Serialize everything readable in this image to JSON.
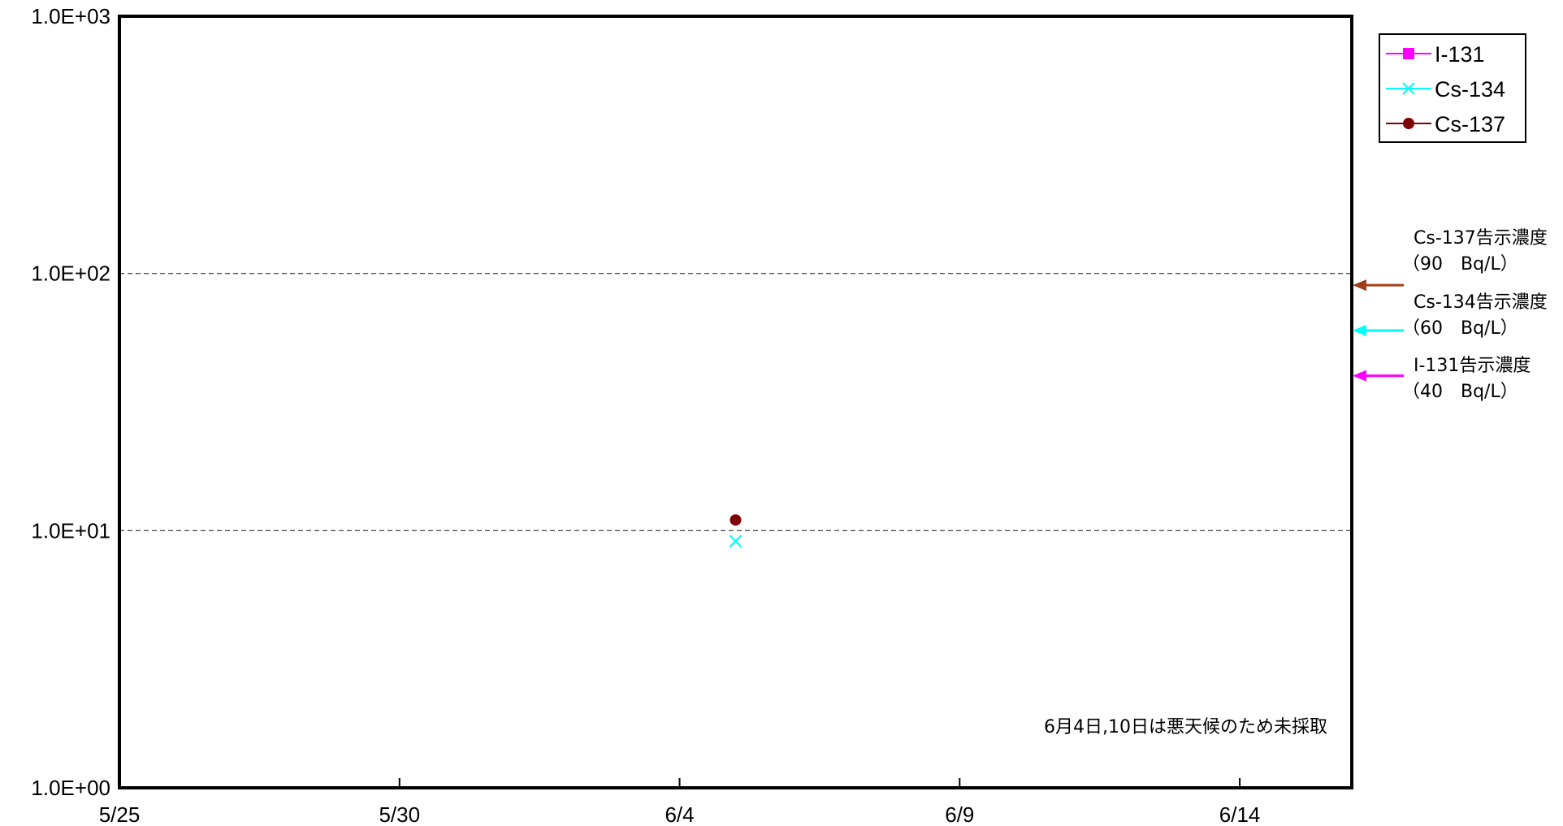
{
  "chart_data": {
    "type": "scatter",
    "x_axis": {
      "type": "date",
      "range": [
        "5/25",
        "6/16"
      ],
      "tick_labels": [
        "5/25",
        "5/30",
        "6/4",
        "6/9",
        "6/14"
      ]
    },
    "y_axis": {
      "scale": "log",
      "range": [
        1,
        1000
      ],
      "tick_labels": [
        "1.0E+00",
        "1.0E+01",
        "1.0E+02",
        "1.0E+03"
      ]
    },
    "grid": {
      "horizontal": "dashed"
    },
    "legend": {
      "position": "top-right",
      "entries": [
        {
          "label": "I-131",
          "color": "#ff00ff",
          "marker": "square"
        },
        {
          "label": "Cs-134",
          "color": "#00ffff",
          "marker": "x"
        },
        {
          "label": "Cs-137",
          "color": "#800000",
          "marker": "circle"
        }
      ]
    },
    "series": [
      {
        "name": "I-131",
        "color": "#ff00ff",
        "marker": "square",
        "points": []
      },
      {
        "name": "Cs-134",
        "color": "#00ffff",
        "marker": "x",
        "points": [
          {
            "x": "6/5",
            "y": 9.1
          }
        ]
      },
      {
        "name": "Cs-137",
        "color": "#800000",
        "marker": "circle",
        "points": [
          {
            "x": "6/5",
            "y": 11
          }
        ]
      }
    ],
    "reference_levels": [
      {
        "line1": "Cs-137告示濃度",
        "line2": "（90　Bq/L）",
        "value": 90,
        "color": "#a0401a"
      },
      {
        "line1": "Cs-134告示濃度",
        "line2": "（60　Bq/L）",
        "value": 60,
        "color": "#00ffff"
      },
      {
        "line1": "I-131告示濃度",
        "line2": "（40　Bq/L）",
        "value": 40,
        "color": "#ff00ff"
      }
    ],
    "note": "6月4日,10日は悪天候のため未採取"
  }
}
